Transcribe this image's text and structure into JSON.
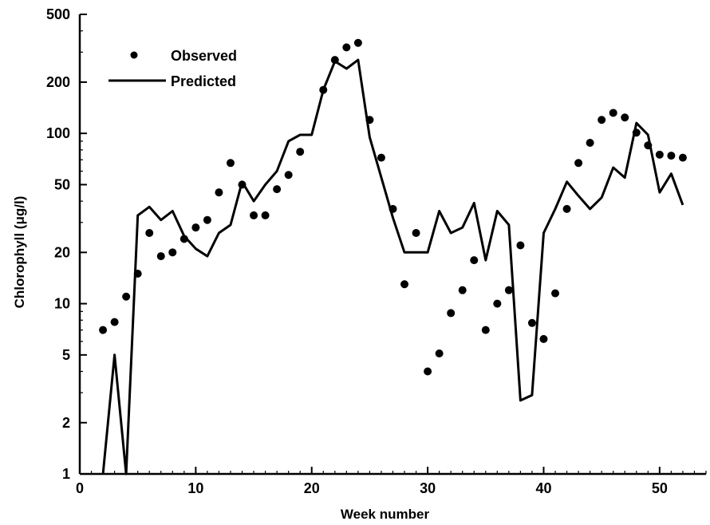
{
  "chart_data": {
    "type": "line",
    "xlabel": "Week number",
    "ylabel": "Chlorophyll (μg/l)",
    "xlim": [
      0,
      54
    ],
    "ylim": [
      1,
      500
    ],
    "yscale": "log",
    "grid": false,
    "legend_position": "top-left",
    "x_ticks": [
      0,
      10,
      20,
      30,
      40,
      50
    ],
    "x_tick_labels": [
      "0",
      "10",
      "20",
      "30",
      "40",
      "50"
    ],
    "y_ticks": [
      1,
      2,
      5,
      10,
      20,
      50,
      100,
      200,
      500
    ],
    "y_tick_labels": [
      "1",
      "2",
      "5",
      "10",
      "20",
      "50",
      "100",
      "200",
      "500"
    ],
    "series": [
      {
        "name": "Observed",
        "style": "points",
        "color": "#000000",
        "points": [
          [
            2,
            7
          ],
          [
            3,
            7.8
          ],
          [
            4,
            11
          ],
          [
            5,
            15
          ],
          [
            6,
            26
          ],
          [
            7,
            19
          ],
          [
            8,
            20
          ],
          [
            9,
            24
          ],
          [
            10,
            28
          ],
          [
            11,
            31
          ],
          [
            12,
            45
          ],
          [
            13,
            67
          ],
          [
            14,
            50
          ],
          [
            15,
            33
          ],
          [
            16,
            33
          ],
          [
            17,
            47
          ],
          [
            18,
            57
          ],
          [
            19,
            78
          ],
          [
            21,
            180
          ],
          [
            22,
            270
          ],
          [
            23,
            320
          ],
          [
            24,
            340
          ],
          [
            25,
            120
          ],
          [
            26,
            72
          ],
          [
            27,
            36
          ],
          [
            28,
            13
          ],
          [
            29,
            26
          ],
          [
            30,
            4
          ],
          [
            31,
            5.1
          ],
          [
            32,
            8.8
          ],
          [
            33,
            12
          ],
          [
            34,
            18
          ],
          [
            35,
            7
          ],
          [
            36,
            10
          ],
          [
            37,
            12
          ],
          [
            38,
            22
          ],
          [
            39,
            7.7
          ],
          [
            40,
            6.2
          ],
          [
            41,
            11.5
          ],
          [
            42,
            36
          ],
          [
            43,
            67
          ],
          [
            44,
            88
          ],
          [
            45,
            120
          ],
          [
            46,
            132
          ],
          [
            47,
            124
          ],
          [
            48,
            101
          ],
          [
            49,
            85
          ],
          [
            50,
            75
          ],
          [
            51,
            74
          ],
          [
            52,
            72
          ]
        ]
      },
      {
        "name": "Predicted",
        "style": "line",
        "color": "#000000",
        "points": [
          [
            2,
            1
          ],
          [
            3,
            5
          ],
          [
            4,
            1
          ],
          [
            5,
            33
          ],
          [
            6,
            37
          ],
          [
            7,
            31
          ],
          [
            8,
            35
          ],
          [
            9,
            25
          ],
          [
            10,
            21
          ],
          [
            11,
            19
          ],
          [
            12,
            26
          ],
          [
            13,
            29
          ],
          [
            14,
            52
          ],
          [
            15,
            40
          ],
          [
            16,
            50
          ],
          [
            17,
            60
          ],
          [
            18,
            90
          ],
          [
            19,
            98
          ],
          [
            20,
            98
          ],
          [
            21,
            180
          ],
          [
            22,
            265
          ],
          [
            23,
            240
          ],
          [
            24,
            270
          ],
          [
            25,
            95
          ],
          [
            26,
            55
          ],
          [
            27,
            32
          ],
          [
            28,
            20
          ],
          [
            29,
            20
          ],
          [
            30,
            20
          ],
          [
            31,
            35
          ],
          [
            32,
            26
          ],
          [
            33,
            28
          ],
          [
            34,
            39
          ],
          [
            35,
            18
          ],
          [
            36,
            35
          ],
          [
            37,
            29
          ],
          [
            38,
            2.7
          ],
          [
            39,
            2.9
          ],
          [
            40,
            26
          ],
          [
            41,
            36
          ],
          [
            42,
            52
          ],
          [
            43,
            43
          ],
          [
            44,
            36
          ],
          [
            45,
            42
          ],
          [
            46,
            63
          ],
          [
            47,
            55
          ],
          [
            48,
            115
          ],
          [
            49,
            98
          ],
          [
            50,
            45
          ],
          [
            51,
            58
          ],
          [
            52,
            38
          ]
        ]
      }
    ]
  }
}
